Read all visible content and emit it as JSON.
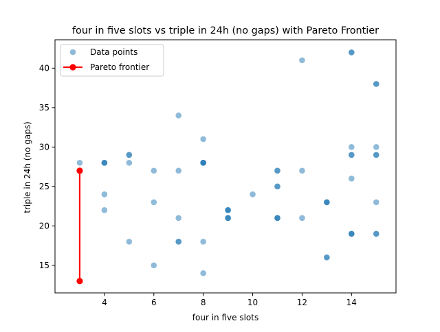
{
  "chart_data": {
    "type": "scatter",
    "title": "four in five slots vs triple in 24h (no gaps) with Pareto Frontier",
    "xlabel": "four in five slots",
    "ylabel": "triple in 24h (no gaps)",
    "xlim": [
      2.0,
      15.8
    ],
    "ylim": [
      11.5,
      43.6
    ],
    "xticks": [
      4,
      6,
      8,
      10,
      12,
      14
    ],
    "yticks": [
      15,
      20,
      25,
      30,
      35,
      40
    ],
    "grid": false,
    "legend": "top-left",
    "series": [
      {
        "name": "Data points",
        "color": "#1f77b4",
        "points": [
          [
            3,
            28
          ],
          [
            3,
            27
          ],
          [
            4,
            28
          ],
          [
            4,
            28
          ],
          [
            4,
            28
          ],
          [
            4,
            24
          ],
          [
            4,
            22
          ],
          [
            5,
            29
          ],
          [
            5,
            29
          ],
          [
            5,
            28
          ],
          [
            5,
            18
          ],
          [
            6,
            27
          ],
          [
            6,
            23
          ],
          [
            6,
            15
          ],
          [
            7,
            34
          ],
          [
            7,
            27
          ],
          [
            7,
            21
          ],
          [
            7,
            18
          ],
          [
            7,
            18
          ],
          [
            8,
            31
          ],
          [
            8,
            28
          ],
          [
            8,
            28
          ],
          [
            8,
            28
          ],
          [
            8,
            28
          ],
          [
            8,
            18
          ],
          [
            8,
            14
          ],
          [
            9,
            22
          ],
          [
            9,
            22
          ],
          [
            9,
            22
          ],
          [
            9,
            21
          ],
          [
            9,
            21
          ],
          [
            9,
            21
          ],
          [
            10,
            24
          ],
          [
            11,
            27
          ],
          [
            11,
            27
          ],
          [
            11,
            25
          ],
          [
            11,
            25
          ],
          [
            11,
            21
          ],
          [
            11,
            21
          ],
          [
            11,
            21
          ],
          [
            12,
            41
          ],
          [
            12,
            27
          ],
          [
            12,
            21
          ],
          [
            13,
            23
          ],
          [
            13,
            23
          ],
          [
            13,
            23
          ],
          [
            13,
            16
          ],
          [
            13,
            16
          ],
          [
            14,
            42
          ],
          [
            14,
            42
          ],
          [
            14,
            30
          ],
          [
            14,
            29
          ],
          [
            14,
            29
          ],
          [
            14,
            26
          ],
          [
            14,
            19
          ],
          [
            14,
            19
          ],
          [
            14,
            19
          ],
          [
            15,
            38
          ],
          [
            15,
            38
          ],
          [
            15,
            30
          ],
          [
            15,
            29
          ],
          [
            15,
            29
          ],
          [
            15,
            23
          ],
          [
            15,
            19
          ],
          [
            15,
            19
          ]
        ]
      },
      {
        "name": "Pareto frontier",
        "color": "#ff0000",
        "points": [
          [
            3,
            27
          ],
          [
            3,
            13
          ]
        ]
      }
    ]
  }
}
